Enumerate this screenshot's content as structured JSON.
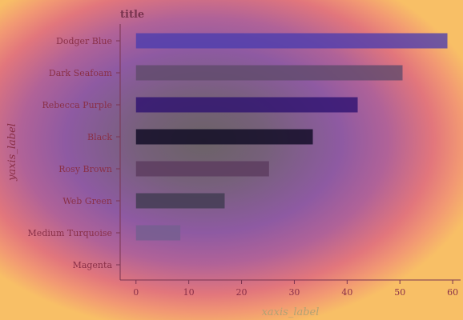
{
  "chart_data": {
    "type": "bar",
    "orientation": "horizontal",
    "title": "title",
    "xlabel": "xaxis_label",
    "ylabel": "yaxis_label",
    "categories": [
      "Dodger Blue",
      "Dark Seafoam",
      "Rebecca Purple",
      "Black",
      "Rosy Brown",
      "Web Green",
      "Medium Turquoise",
      "Magenta"
    ],
    "values": [
      59,
      50.5,
      42,
      33.5,
      25.2,
      16.8,
      8.4,
      0
    ],
    "colors": [
      "#4a3cae",
      "#5f4a6a",
      "#2c1070",
      "#0a0620",
      "#5b3a5e",
      "#3e3a4e",
      "#735f8e",
      "#c03890"
    ],
    "xlim": [
      -3,
      61.5
    ],
    "xticks": [
      0,
      10,
      20,
      30,
      40,
      50,
      60
    ],
    "grid": false,
    "colors_meta": {
      "title": "#7a3450",
      "ylabel": "#8a3048",
      "xlabel": "#b3a273",
      "axis_line": "#7a3450"
    }
  }
}
